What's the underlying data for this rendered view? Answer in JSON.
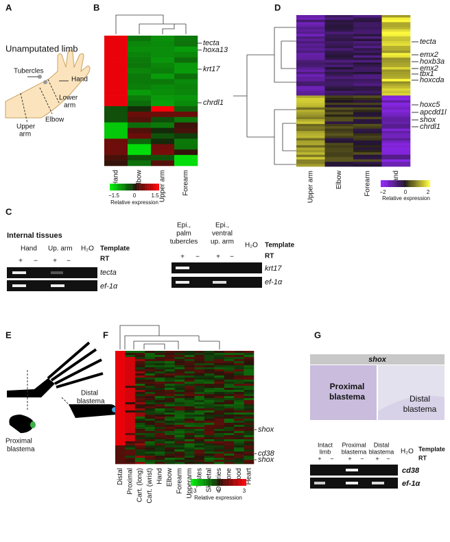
{
  "panel_a": {
    "label": "A",
    "title": "Unamputated limb",
    "tubercles": "Tubercles",
    "hand": "Hand",
    "lower_arm": [
      "Lower",
      "arm"
    ],
    "elbow": "Elbow",
    "upper_arm": [
      "Upper",
      "arm"
    ]
  },
  "panel_b": {
    "label": "B",
    "columns": [
      "Hand",
      "Elbow",
      "Upper arm",
      "Forearm"
    ],
    "genes": [
      "tecta",
      "hoxa13",
      "krt17",
      "chrdl1"
    ],
    "colorbar_ticks": [
      "−1.5",
      "0",
      "1.5"
    ],
    "colorbar_label": "Relative expression"
  },
  "panel_c": {
    "label": "C",
    "left": {
      "title": "Internal tissues",
      "samples": [
        "Hand",
        "Up. arm"
      ],
      "water": "H₂O",
      "template": "Template",
      "rt": "RT",
      "rt_signs": [
        "+",
        "−",
        "+",
        "−"
      ],
      "genes": [
        "tecta",
        "ef-1α"
      ]
    },
    "right": {
      "samples": [
        [
          "Epi.,",
          "palm",
          "tubercles"
        ],
        [
          "Epi.,",
          "ventral",
          "up. arm"
        ]
      ],
      "water": "H₂O",
      "template": "Template",
      "rt": "RT",
      "rt_signs": [
        "+",
        "−",
        "+",
        "−"
      ],
      "genes": [
        "krt17",
        "ef-1α"
      ]
    }
  },
  "panel_d": {
    "label": "D",
    "columns": [
      "Upper arm",
      "Elbow",
      "Forearm",
      "Hand"
    ],
    "genes": [
      "tecta",
      "emx2",
      "hoxb3a",
      "emx2",
      "tbx1",
      "hoxcda",
      "hoxc5",
      "apcdd1l",
      "shox",
      "chrdl1"
    ],
    "colorbar_ticks": [
      "−2",
      "0",
      "2"
    ],
    "colorbar_label": "Relative expression"
  },
  "panel_e": {
    "label": "E",
    "proximal": [
      "Proximal",
      "blastema"
    ],
    "distal": [
      "Distal",
      "blastema"
    ]
  },
  "panel_f": {
    "label": "F",
    "columns": [
      "Distal",
      "Proximal",
      "Cart. (long)",
      "Cart. (wrist)",
      "Hand",
      "Elbow",
      "Forearm",
      "Upperarm",
      "Testes",
      "Skeletal",
      "Ovaries",
      "Bone",
      "Blood",
      "Heart"
    ],
    "genes": [
      "shox",
      "cd38",
      "shox"
    ],
    "colorbar_ticks": [
      "−3",
      "0",
      "3"
    ],
    "colorbar_label": "Relative expression"
  },
  "panel_g": {
    "label": "G",
    "image_title": "shox",
    "image_labels": [
      [
        "Proximal",
        "blastema"
      ],
      [
        "Distal",
        "blastema"
      ]
    ],
    "samples": [
      [
        "Intact",
        "limb"
      ],
      [
        "Proximal",
        "blastema"
      ],
      [
        "Distal",
        "blastema"
      ]
    ],
    "water": "H₂O",
    "template": "Template",
    "rt": "RT",
    "rt_signs": [
      "+",
      "−",
      "+",
      "−",
      "+",
      "−"
    ],
    "genes": [
      "cd38",
      "ef-1α"
    ]
  }
}
